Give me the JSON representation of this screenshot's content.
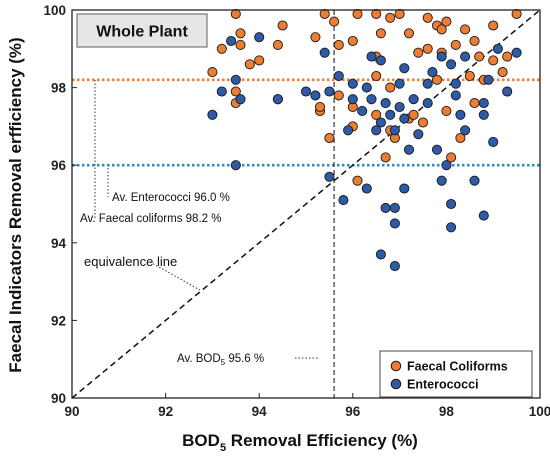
{
  "chart_data": {
    "type": "scatter",
    "title": "",
    "panel_label": "Whole Plant",
    "xlabel_main": "BOD",
    "xlabel_sub": "5",
    "xlabel_rest": " Removal Efficiency  (%)",
    "ylabel": "Faecal Indicators Removal erfficiency (%)",
    "xlim": [
      90,
      100
    ],
    "ylim": [
      90,
      100
    ],
    "x_ticks": [
      "90",
      "92",
      "94",
      "96",
      "98",
      "100"
    ],
    "y_ticks": [
      "90",
      "92",
      "94",
      "96",
      "98",
      "100"
    ],
    "grid": false,
    "legend_position": "bottom-right",
    "colors": {
      "faecal": "#ED7D31",
      "entero": "#2E5BA8",
      "marker_edge": "#1a1a1a",
      "faecal_line": "#ED7D31",
      "entero_line": "#2E8BC0"
    },
    "reference_lines": {
      "avg_enterococci": 96.0,
      "avg_faecal_coliforms": 98.2,
      "avg_bod5": 95.6
    },
    "annotations": {
      "enterococci": "Av. Enterococci 96.0 %",
      "faecal": "Av. Faecal coliforms 98.2 %",
      "equivalence": "equivalence line",
      "bod_main": "Av. BOD",
      "bod_sub": "5",
      "bod_rest": " 95.6 %"
    },
    "series": [
      {
        "name": "Faecal Coliforms",
        "points": [
          [
            93.5,
            99.9
          ],
          [
            94.5,
            99.6
          ],
          [
            95.4,
            99.9
          ],
          [
            95.6,
            99.7
          ],
          [
            96.1,
            99.9
          ],
          [
            96.5,
            99.9
          ],
          [
            96.8,
            99.8
          ],
          [
            97.0,
            99.9
          ],
          [
            97.6,
            99.8
          ],
          [
            97.8,
            99.6
          ],
          [
            98.0,
            99.7
          ],
          [
            98.4,
            99.5
          ],
          [
            99.0,
            99.6
          ],
          [
            99.5,
            99.9
          ],
          [
            93.6,
            99.4
          ],
          [
            94.4,
            99.1
          ],
          [
            95.2,
            99.3
          ],
          [
            96.0,
            99.2
          ],
          [
            96.6,
            99.4
          ],
          [
            97.2,
            99.4
          ],
          [
            97.9,
            99.5
          ],
          [
            98.6,
            99.2
          ],
          [
            99.3,
            98.8
          ],
          [
            93.0,
            98.4
          ],
          [
            93.8,
            98.6
          ],
          [
            96.5,
            98.8
          ],
          [
            97.8,
            98.2
          ],
          [
            98.5,
            98.3
          ],
          [
            99.0,
            98.7
          ],
          [
            93.5,
            97.6
          ],
          [
            95.3,
            97.4
          ],
          [
            96.0,
            97.5
          ],
          [
            96.5,
            97.3
          ],
          [
            97.2,
            97.2
          ],
          [
            98.0,
            97.4
          ],
          [
            98.6,
            97.6
          ],
          [
            95.5,
            96.7
          ],
          [
            96.9,
            96.7
          ],
          [
            97.5,
            97.1
          ],
          [
            98.3,
            96.7
          ],
          [
            96.7,
            96.2
          ],
          [
            98.1,
            96.2
          ],
          [
            96.1,
            95.6
          ],
          [
            93.5,
            97.9
          ],
          [
            94.0,
            98.7
          ],
          [
            97.4,
            98.9
          ],
          [
            98.8,
            98.2
          ],
          [
            96.8,
            96.9
          ],
          [
            95.7,
            99.1
          ],
          [
            97.6,
            99.0
          ],
          [
            93.2,
            99.0
          ],
          [
            93.6,
            99.1
          ],
          [
            96.8,
            98.0
          ],
          [
            97.9,
            98.9
          ],
          [
            98.2,
            99.1
          ],
          [
            99.2,
            98.4
          ],
          [
            95.3,
            97.5
          ],
          [
            96.0,
            97.0
          ],
          [
            97.3,
            97.3
          ],
          [
            98.7,
            98.8
          ],
          [
            95.7,
            97.8
          ],
          [
            96.5,
            98.3
          ]
        ]
      },
      {
        "name": "Enterococci",
        "points": [
          [
            93.4,
            99.2
          ],
          [
            94.0,
            99.3
          ],
          [
            95.4,
            98.9
          ],
          [
            95.7,
            98.3
          ],
          [
            96.0,
            98.1
          ],
          [
            96.3,
            98.0
          ],
          [
            96.6,
            98.7
          ],
          [
            97.1,
            98.5
          ],
          [
            97.7,
            98.4
          ],
          [
            98.1,
            98.6
          ],
          [
            98.4,
            98.8
          ],
          [
            99.1,
            99.0
          ],
          [
            99.5,
            98.9
          ],
          [
            93.0,
            97.3
          ],
          [
            93.6,
            97.7
          ],
          [
            94.4,
            97.7
          ],
          [
            95.5,
            97.9
          ],
          [
            96.0,
            97.7
          ],
          [
            96.4,
            97.7
          ],
          [
            96.7,
            97.6
          ],
          [
            97.0,
            97.5
          ],
          [
            97.3,
            97.7
          ],
          [
            97.6,
            97.6
          ],
          [
            98.2,
            97.8
          ],
          [
            98.8,
            97.6
          ],
          [
            99.3,
            97.9
          ],
          [
            96.2,
            97.4
          ],
          [
            96.6,
            97.1
          ],
          [
            97.1,
            97.2
          ],
          [
            98.3,
            97.3
          ],
          [
            98.8,
            97.3
          ],
          [
            95.9,
            96.9
          ],
          [
            96.5,
            96.9
          ],
          [
            96.9,
            96.9
          ],
          [
            97.2,
            96.4
          ],
          [
            97.8,
            96.4
          ],
          [
            98.4,
            96.9
          ],
          [
            99.0,
            96.6
          ],
          [
            93.5,
            96.0
          ],
          [
            95.5,
            95.7
          ],
          [
            96.3,
            95.4
          ],
          [
            97.1,
            95.4
          ],
          [
            97.9,
            95.6
          ],
          [
            98.6,
            95.6
          ],
          [
            95.8,
            95.1
          ],
          [
            96.9,
            94.9
          ],
          [
            98.1,
            95.0
          ],
          [
            96.9,
            94.5
          ],
          [
            98.1,
            94.4
          ],
          [
            98.8,
            94.7
          ],
          [
            96.6,
            93.7
          ],
          [
            96.9,
            93.4
          ],
          [
            96.7,
            94.9
          ],
          [
            93.2,
            97.9
          ],
          [
            95.2,
            97.8
          ],
          [
            96.4,
            98.8
          ],
          [
            97.6,
            98.1
          ],
          [
            97.9,
            98.8
          ],
          [
            98.2,
            98.1
          ],
          [
            98.9,
            98.2
          ],
          [
            96.8,
            97.3
          ],
          [
            97.0,
            98.1
          ],
          [
            94.4,
            97.7
          ],
          [
            93.5,
            98.2
          ],
          [
            95.0,
            97.9
          ],
          [
            97.4,
            96.8
          ],
          [
            98.0,
            96.0
          ]
        ]
      }
    ],
    "equivalence_line": [
      [
        90,
        90
      ],
      [
        100,
        100
      ]
    ]
  }
}
